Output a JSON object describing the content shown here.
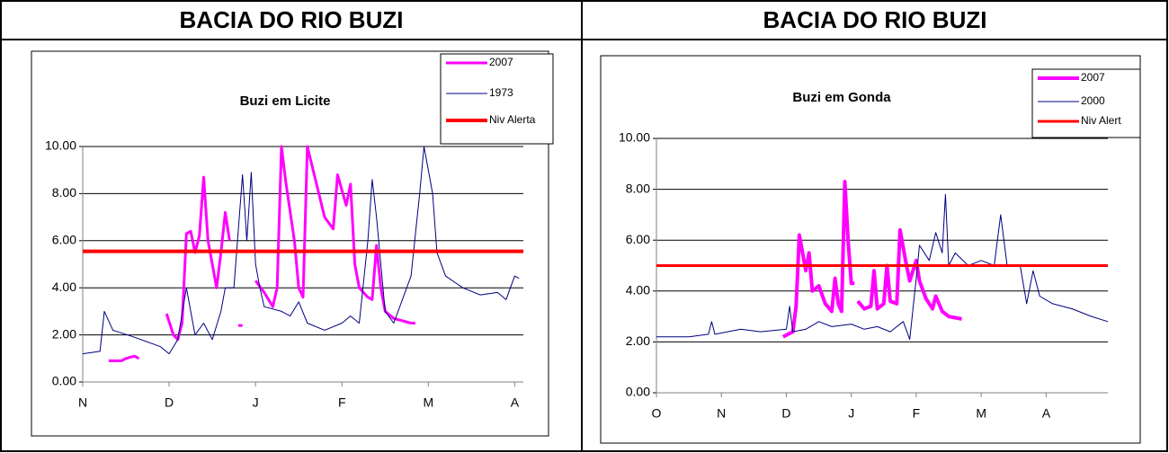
{
  "panels": [
    {
      "title": "BACIA DO RIO BUZI"
    },
    {
      "title": "BACIA DO RIO BUZI"
    }
  ],
  "chart_data": [
    {
      "type": "line",
      "title": "Buzi em Licite",
      "xlim": [
        0,
        5.1
      ],
      "xticks": [
        {
          "value": 0,
          "label": "N"
        },
        {
          "value": 1,
          "label": "D"
        },
        {
          "value": 2,
          "label": "J"
        },
        {
          "value": 3,
          "label": "F"
        },
        {
          "value": 4,
          "label": "M"
        },
        {
          "value": 5,
          "label": "A"
        }
      ],
      "ylim": [
        0,
        10
      ],
      "yticks": [
        {
          "value": 0,
          "label": "0.00"
        },
        {
          "value": 2,
          "label": "2.00"
        },
        {
          "value": 4,
          "label": "4.00"
        },
        {
          "value": 6,
          "label": "6.00"
        },
        {
          "value": 8,
          "label": "8.00"
        },
        {
          "value": 10,
          "label": "10.00"
        }
      ],
      "grid": true,
      "series": [
        {
          "name": "2007",
          "color": "#ff00ff",
          "x": [
            0.3,
            0.45,
            0.5,
            0.6,
            0.65,
            null,
            0.97,
            1.05,
            1.1,
            1.15,
            1.2,
            1.25,
            1.3,
            1.35,
            1.4,
            1.45,
            1.5,
            1.55,
            1.6,
            1.65,
            1.7,
            null,
            1.8,
            1.85,
            null,
            2.0,
            2.1,
            2.2,
            2.25,
            2.3,
            2.35,
            2.45,
            2.5,
            2.55,
            2.6,
            2.7,
            2.8,
            2.9,
            2.95,
            3.05,
            3.1,
            3.15,
            3.2,
            3.3,
            3.35,
            3.4,
            3.45,
            3.5,
            3.6,
            3.8,
            3.85
          ],
          "values": [
            0.9,
            0.9,
            1.0,
            1.1,
            1.0,
            null,
            2.9,
            2.0,
            1.8,
            2.5,
            6.3,
            6.4,
            5.5,
            6.2,
            8.7,
            6.0,
            5.0,
            4.0,
            5.5,
            7.2,
            6.0,
            null,
            2.4,
            2.4,
            null,
            4.3,
            3.8,
            3.2,
            4.0,
            10,
            8.5,
            6.0,
            4.0,
            3.6,
            10,
            8.5,
            7.0,
            6.5,
            8.8,
            7.5,
            8.4,
            5.0,
            4.0,
            3.6,
            3.5,
            5.8,
            4.0,
            3.0,
            2.7,
            2.5,
            2.5
          ]
        },
        {
          "name": "1973",
          "color": "#000080",
          "x": [
            0,
            0.2,
            0.25,
            0.35,
            0.6,
            0.9,
            1.0,
            1.1,
            1.2,
            1.3,
            1.4,
            1.5,
            1.6,
            1.65,
            1.75,
            1.85,
            1.9,
            1.95,
            2.0,
            2.05,
            2.1,
            2.3,
            2.4,
            2.5,
            2.6,
            2.8,
            3.0,
            3.1,
            3.2,
            3.3,
            3.35,
            3.4,
            3.5,
            3.6,
            3.8,
            3.9,
            3.95,
            4.05,
            4.1,
            4.2,
            4.4,
            4.6,
            4.8,
            4.9,
            5.0,
            5.05
          ],
          "values": [
            1.2,
            1.3,
            3.0,
            2.2,
            1.9,
            1.5,
            1.2,
            1.8,
            4.0,
            2.0,
            2.5,
            1.8,
            3.0,
            4.0,
            4.0,
            8.8,
            6.0,
            8.9,
            5.0,
            4.0,
            3.2,
            3.0,
            2.8,
            3.4,
            2.5,
            2.2,
            2.5,
            2.8,
            2.5,
            6.0,
            8.6,
            7.0,
            3.0,
            2.5,
            4.5,
            8.0,
            10,
            8.0,
            5.5,
            4.5,
            4.0,
            3.7,
            3.8,
            3.5,
            4.5,
            4.4
          ]
        },
        {
          "name": "Niv Alerta",
          "color": "#ff0000",
          "x": [
            0,
            5.1
          ],
          "values": [
            5.55,
            5.55
          ]
        }
      ]
    },
    {
      "type": "line",
      "title": "Buzi em Gonda",
      "xlim": [
        0,
        6.95
      ],
      "xticks": [
        {
          "value": 0,
          "label": "O"
        },
        {
          "value": 1,
          "label": "N"
        },
        {
          "value": 2,
          "label": "D"
        },
        {
          "value": 3,
          "label": "J"
        },
        {
          "value": 4,
          "label": "F"
        },
        {
          "value": 5,
          "label": "M"
        },
        {
          "value": 6,
          "label": "A"
        }
      ],
      "ylim": [
        0,
        10
      ],
      "yticks": [
        {
          "value": 0,
          "label": "0.00"
        },
        {
          "value": 2,
          "label": "2.00"
        },
        {
          "value": 4,
          "label": "4.00"
        },
        {
          "value": 6,
          "label": "6.00"
        },
        {
          "value": 8,
          "label": "8.00"
        },
        {
          "value": 10,
          "label": "10.00"
        }
      ],
      "grid": true,
      "series": [
        {
          "name": "2007",
          "color": "#ff00ff",
          "x": [
            1.95,
            2.1,
            2.15,
            2.2,
            2.3,
            2.35,
            2.4,
            2.5,
            2.6,
            2.7,
            2.75,
            2.8,
            2.85,
            2.9,
            2.95,
            3.0,
            3.05,
            null,
            3.1,
            3.2,
            3.3,
            3.35,
            3.4,
            3.5,
            3.55,
            3.6,
            3.7,
            3.75,
            3.85,
            3.9,
            4.0,
            4.05,
            4.15,
            4.25,
            4.3,
            4.4,
            4.5,
            4.7
          ],
          "values": [
            2.2,
            2.4,
            3.4,
            6.2,
            4.8,
            5.5,
            4.0,
            4.2,
            3.5,
            3.2,
            4.5,
            3.5,
            3.2,
            8.3,
            6.0,
            4.3,
            4.3,
            null,
            3.6,
            3.3,
            3.4,
            4.8,
            3.3,
            3.5,
            5.0,
            3.6,
            3.5,
            6.4,
            5.0,
            4.4,
            5.2,
            4.4,
            3.7,
            3.3,
            3.8,
            3.2,
            3.0,
            2.9
          ]
        },
        {
          "name": "2000",
          "color": "#000080",
          "x": [
            0,
            0.5,
            0.8,
            0.85,
            0.9,
            1.3,
            1.6,
            2.0,
            2.05,
            2.1,
            2.3,
            2.5,
            2.7,
            3.0,
            3.2,
            3.4,
            3.6,
            3.8,
            3.9,
            4.0,
            4.05,
            4.2,
            4.3,
            4.4,
            4.45,
            4.5,
            4.6,
            4.8,
            5.0,
            5.2,
            5.3,
            5.4,
            5.6,
            5.7,
            5.8,
            5.9,
            6.1,
            6.4,
            6.7,
            6.95
          ],
          "values": [
            2.2,
            2.2,
            2.3,
            2.8,
            2.3,
            2.5,
            2.4,
            2.5,
            3.4,
            2.4,
            2.5,
            2.8,
            2.6,
            2.7,
            2.5,
            2.6,
            2.4,
            2.8,
            2.1,
            4.5,
            5.8,
            5.2,
            6.3,
            5.5,
            7.8,
            5.0,
            5.5,
            5.0,
            5.2,
            5.0,
            7.0,
            5.0,
            5.0,
            3.5,
            4.8,
            3.8,
            3.5,
            3.3,
            3.0,
            2.8
          ]
        },
        {
          "name": "Niv Alert",
          "color": "#ff0000",
          "x": [
            0,
            6.95
          ],
          "values": [
            5.0,
            5.0
          ]
        }
      ]
    }
  ]
}
